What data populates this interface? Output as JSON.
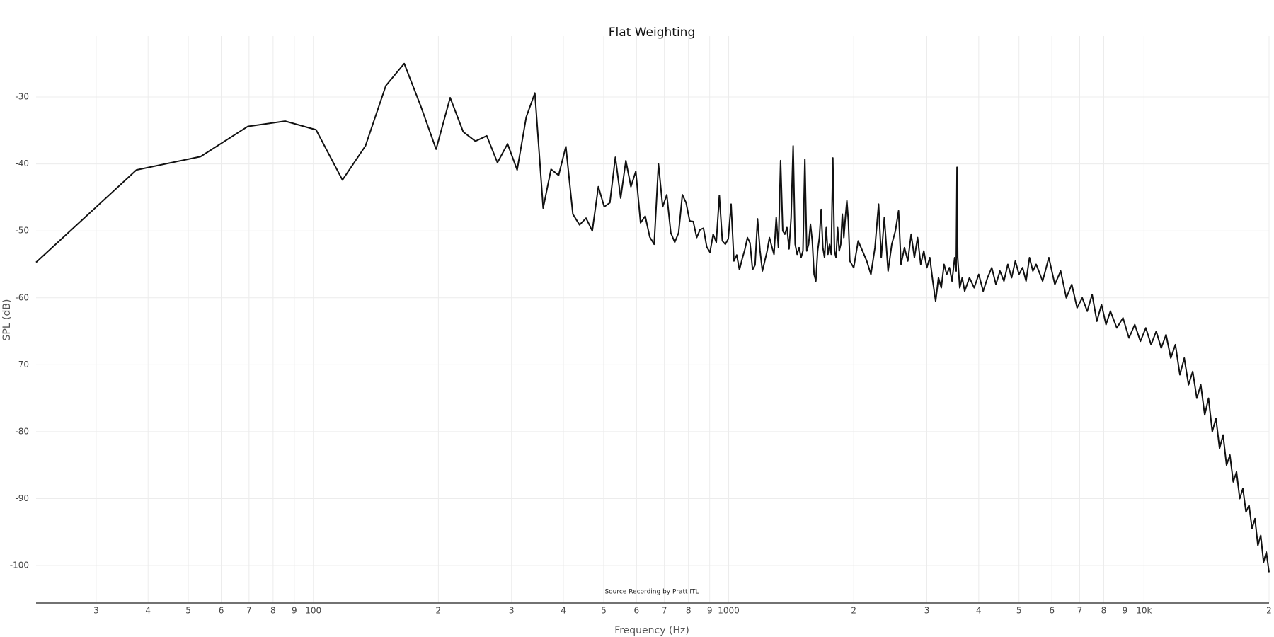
{
  "chart_data": {
    "type": "line",
    "title": "Flat Weighting",
    "x_label": "Frequency (Hz)",
    "y_label": "SPL (dB)",
    "annotation": "Source Recording by Pratt ITL",
    "x_scale": "log",
    "grid": true,
    "color": "#111111",
    "xlim": [
      21.5,
      20000
    ],
    "ylim": [
      -105.6,
      -20.9
    ],
    "yticks": [
      -100,
      -90,
      -80,
      -70,
      -60,
      -50,
      -40,
      -30
    ],
    "xticks": [
      {
        "value": 30,
        "label": "3"
      },
      {
        "value": 40,
        "label": "4"
      },
      {
        "value": 50,
        "label": "5"
      },
      {
        "value": 60,
        "label": "6"
      },
      {
        "value": 70,
        "label": "7"
      },
      {
        "value": 80,
        "label": "8"
      },
      {
        "value": 90,
        "label": "9"
      },
      100,
      {
        "value": 200,
        "label": "2"
      },
      {
        "value": 300,
        "label": "3"
      },
      {
        "value": 400,
        "label": "4"
      },
      {
        "value": 500,
        "label": "5"
      },
      {
        "value": 600,
        "label": "6"
      },
      {
        "value": 700,
        "label": "7"
      },
      {
        "value": 800,
        "label": "8"
      },
      {
        "value": 900,
        "label": "9"
      },
      1000,
      {
        "value": 2000,
        "label": "2"
      },
      {
        "value": 3000,
        "label": "3"
      },
      {
        "value": 4000,
        "label": "4"
      },
      {
        "value": 5000,
        "label": "5"
      },
      {
        "value": 6000,
        "label": "6"
      },
      {
        "value": 7000,
        "label": "7"
      },
      {
        "value": 8000,
        "label": "8"
      },
      {
        "value": 9000,
        "label": "9"
      },
      {
        "value": 10000,
        "label": "10k"
      },
      {
        "value": 20000,
        "label": "2"
      }
    ],
    "x": [
      21.5,
      37.5,
      53.5,
      69.5,
      85.5,
      101.5,
      117.5,
      133.5,
      149.5,
      165.5,
      181.5,
      197.5,
      213.5,
      229.5,
      245.5,
      261.5,
      277.5,
      293.5,
      309.5,
      325.5,
      341.5,
      357.5,
      373.5,
      389.5,
      405.5,
      421.5,
      437.5,
      453.5,
      469.5,
      485.5,
      501.5,
      517.5,
      533.5,
      549.5,
      565.5,
      581.5,
      597.5,
      613.5,
      629.5,
      645.5,
      661.5,
      677.5,
      693.5,
      709.5,
      725.5,
      741.5,
      757.5,
      773.5,
      789.5,
      805.5,
      821.5,
      837.5,
      853.5,
      869.5,
      885.5,
      901.5,
      917.5,
      933.5,
      949.5,
      965.5,
      981.5,
      997.5,
      1013.5,
      1029.5,
      1045.5,
      1061.5,
      1077.5,
      1093.5,
      1109.5,
      1125.5,
      1141.5,
      1157.5,
      1173.5,
      1189.5,
      1205.5,
      1221.5,
      1237.5,
      1253.5,
      1269.5,
      1285.5,
      1301.5,
      1317.5,
      1333.5,
      1349.5,
      1365.5,
      1381.5,
      1397.5,
      1413.5,
      1429.5,
      1445.5,
      1461.5,
      1477.5,
      1493.5,
      1509.5,
      1525.5,
      1541.5,
      1557.5,
      1573.5,
      1589.5,
      1605.5,
      1621.5,
      1637.5,
      1653.5,
      1669.5,
      1685.5,
      1701.5,
      1717.5,
      1733.5,
      1749.5,
      1765.5,
      1781.5,
      1797.5,
      1813.5,
      1829.5,
      1845.5,
      1861.5,
      1877.5,
      1893.5,
      1909.5,
      1925.5,
      1941.5,
      1957.5,
      2000,
      2050,
      2100,
      2150,
      2200,
      2250,
      2296,
      2330,
      2370,
      2420,
      2470,
      2520,
      2565,
      2600,
      2650,
      2700,
      2750,
      2800,
      2850,
      2900,
      2950,
      3000,
      3050,
      3100,
      3150,
      3200,
      3250,
      3300,
      3350,
      3400,
      3450,
      3500,
      3530,
      3546,
      3560,
      3600,
      3650,
      3700,
      3800,
      3900,
      4000,
      4100,
      4200,
      4300,
      4400,
      4500,
      4600,
      4700,
      4800,
      4900,
      5000,
      5100,
      5200,
      5300,
      5400,
      5500,
      5700,
      5900,
      6100,
      6300,
      6500,
      6700,
      6900,
      7100,
      7300,
      7500,
      7700,
      7900,
      8100,
      8300,
      8600,
      8900,
      9200,
      9500,
      9800,
      10100,
      10400,
      10700,
      11000,
      11300,
      11600,
      11900,
      12200,
      12500,
      12800,
      13100,
      13400,
      13700,
      14000,
      14300,
      14600,
      14900,
      15200,
      15500,
      15800,
      16100,
      16400,
      16700,
      17000,
      17300,
      17600,
      17900,
      18200,
      18500,
      18800,
      19100,
      19400,
      19700,
      20000
    ],
    "values": [
      -54.7,
      -40.9,
      -38.9,
      -34.4,
      -33.6,
      -34.9,
      -42.4,
      -37.3,
      -28.3,
      -25.0,
      -31.4,
      -37.8,
      -30.1,
      -35.2,
      -36.6,
      -35.8,
      -39.8,
      -37.0,
      -40.9,
      -33.0,
      -29.4,
      -46.6,
      -40.8,
      -41.7,
      -37.4,
      -47.5,
      -49.1,
      -48.1,
      -50.0,
      -43.4,
      -46.4,
      -45.8,
      -39.0,
      -45.1,
      -39.5,
      -43.4,
      -41.1,
      -48.8,
      -47.8,
      -50.9,
      -52.0,
      -40.0,
      -46.4,
      -44.6,
      -50.3,
      -51.7,
      -50.3,
      -44.6,
      -45.8,
      -48.5,
      -48.6,
      -51.0,
      -49.8,
      -49.6,
      -52.4,
      -53.2,
      -50.5,
      -51.7,
      -44.7,
      -51.5,
      -52.0,
      -51.2,
      -46.0,
      -54.5,
      -53.6,
      -55.8,
      -54.2,
      -52.8,
      -51.0,
      -51.8,
      -55.8,
      -55.1,
      -48.2,
      -52.9,
      -56.0,
      -54.5,
      -53.0,
      -51.0,
      -52.3,
      -53.5,
      -48.0,
      -52.5,
      -39.5,
      -50.0,
      -50.5,
      -49.5,
      -52.7,
      -48.0,
      -37.3,
      -52.0,
      -53.5,
      -52.5,
      -54.0,
      -53.0,
      -39.3,
      -53.0,
      -52.0,
      -49.0,
      -51.5,
      -56.5,
      -57.5,
      -53.0,
      -51.0,
      -46.8,
      -52.5,
      -54.0,
      -49.5,
      -53.5,
      -52.0,
      -53.5,
      -39.1,
      -53.0,
      -54.0,
      -49.5,
      -53.0,
      -52.0,
      -47.5,
      -51.0,
      -48.0,
      -45.5,
      -48.5,
      -54.5,
      -55.5,
      -51.5,
      -53.0,
      -54.5,
      -56.5,
      -52.5,
      -46.0,
      -54.0,
      -48.0,
      -56.0,
      -52.0,
      -50.0,
      -47.0,
      -55.0,
      -52.5,
      -54.5,
      -50.5,
      -54.0,
      -51.0,
      -55.0,
      -53.0,
      -55.5,
      -54.0,
      -57.5,
      -60.5,
      -57.0,
      -58.5,
      -55.0,
      -56.5,
      -55.5,
      -57.5,
      -54.0,
      -56.0,
      -40.5,
      -54.0,
      -58.5,
      -57.0,
      -59.0,
      -57.0,
      -58.5,
      -56.5,
      -59.0,
      -57.0,
      -55.5,
      -58.0,
      -56.0,
      -57.5,
      -55.0,
      -57.0,
      -54.5,
      -56.5,
      -55.5,
      -57.5,
      -54.0,
      -56.0,
      -55.0,
      -57.5,
      -54.0,
      -58.0,
      -56.0,
      -60.0,
      -58.0,
      -61.5,
      -60.0,
      -62.0,
      -59.5,
      -63.5,
      -61.0,
      -64.0,
      -62.0,
      -64.5,
      -63.0,
      -66.0,
      -64.0,
      -66.5,
      -64.5,
      -67.0,
      -65.0,
      -67.5,
      -65.5,
      -69.0,
      -67.0,
      -71.5,
      -69.0,
      -73.0,
      -71.0,
      -75.0,
      -73.0,
      -77.5,
      -75.0,
      -80.0,
      -78.0,
      -82.5,
      -80.5,
      -85.0,
      -83.5,
      -87.5,
      -86.0,
      -90.0,
      -88.5,
      -92.0,
      -91.0,
      -94.5,
      -93.0,
      -97.0,
      -95.5,
      -99.5,
      -98.0,
      -101.0
    ]
  }
}
